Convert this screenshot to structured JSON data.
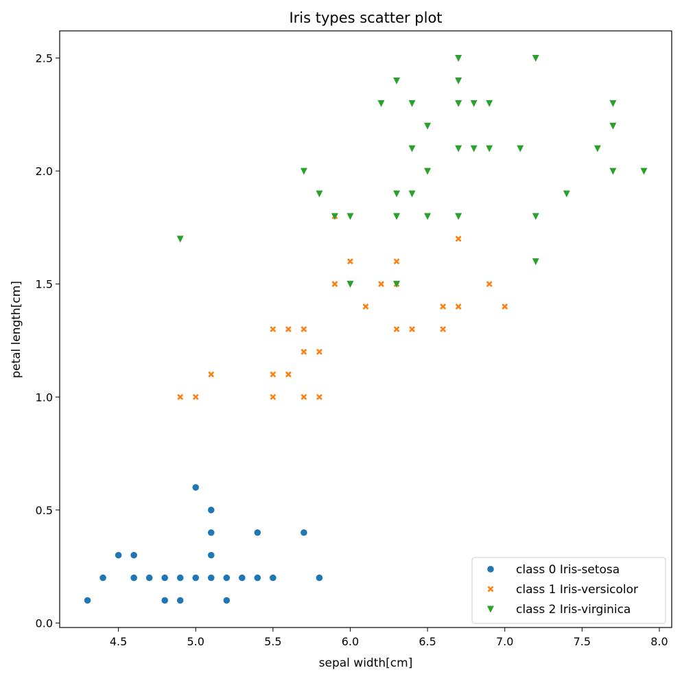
{
  "chart_data": {
    "type": "scatter",
    "title": "Iris types scatter plot",
    "xlabel": "sepal width[cm]",
    "ylabel": "petal length[cm]",
    "xlim": [
      4.12,
      8.08
    ],
    "ylim": [
      -0.02,
      2.62
    ],
    "xticks": [
      4.5,
      5.0,
      5.5,
      6.0,
      6.5,
      7.0,
      7.5,
      8.0
    ],
    "xtick_labels": [
      "4.5",
      "5.0",
      "5.5",
      "6.0",
      "6.5",
      "7.0",
      "7.5",
      "8.0"
    ],
    "yticks": [
      0.0,
      0.5,
      1.0,
      1.5,
      2.0,
      2.5
    ],
    "ytick_labels": [
      "0.0",
      "0.5",
      "1.0",
      "1.5",
      "2.0",
      "2.5"
    ],
    "grid": false,
    "legend_position": "bottom-right",
    "series": [
      {
        "name": "class 0 Iris-setosa",
        "marker": "circle",
        "color": "#1f77b4",
        "points": [
          [
            4.3,
            0.1
          ],
          [
            4.4,
            0.2
          ],
          [
            4.5,
            0.3
          ],
          [
            4.6,
            0.2
          ],
          [
            4.6,
            0.3
          ],
          [
            4.7,
            0.2
          ],
          [
            4.8,
            0.1
          ],
          [
            4.8,
            0.2
          ],
          [
            4.9,
            0.1
          ],
          [
            4.9,
            0.2
          ],
          [
            5.0,
            0.2
          ],
          [
            5.0,
            0.6
          ],
          [
            5.1,
            0.2
          ],
          [
            5.1,
            0.3
          ],
          [
            5.1,
            0.4
          ],
          [
            5.1,
            0.5
          ],
          [
            5.2,
            0.1
          ],
          [
            5.2,
            0.2
          ],
          [
            5.3,
            0.2
          ],
          [
            5.4,
            0.2
          ],
          [
            5.4,
            0.4
          ],
          [
            5.5,
            0.2
          ],
          [
            5.7,
            0.4
          ],
          [
            5.8,
            0.2
          ]
        ]
      },
      {
        "name": "class 1 Iris-versicolor",
        "marker": "x",
        "color": "#ff7f0e",
        "points": [
          [
            4.9,
            1.0
          ],
          [
            5.0,
            1.0
          ],
          [
            5.1,
            1.1
          ],
          [
            5.5,
            1.0
          ],
          [
            5.5,
            1.1
          ],
          [
            5.5,
            1.3
          ],
          [
            5.6,
            1.1
          ],
          [
            5.6,
            1.3
          ],
          [
            5.7,
            1.0
          ],
          [
            5.7,
            1.2
          ],
          [
            5.7,
            1.3
          ],
          [
            5.8,
            1.0
          ],
          [
            5.8,
            1.2
          ],
          [
            5.9,
            1.5
          ],
          [
            5.9,
            1.8
          ],
          [
            6.0,
            1.6
          ],
          [
            6.1,
            1.4
          ],
          [
            6.2,
            1.5
          ],
          [
            6.3,
            1.3
          ],
          [
            6.3,
            1.5
          ],
          [
            6.3,
            1.6
          ],
          [
            6.4,
            1.3
          ],
          [
            6.6,
            1.3
          ],
          [
            6.6,
            1.4
          ],
          [
            6.7,
            1.4
          ],
          [
            6.7,
            1.7
          ],
          [
            6.9,
            1.5
          ],
          [
            7.0,
            1.4
          ]
        ]
      },
      {
        "name": "class 2 Iris-virginica",
        "marker": "triangle-down",
        "color": "#2ca02c",
        "points": [
          [
            4.9,
            1.7
          ],
          [
            5.7,
            2.0
          ],
          [
            5.8,
            1.9
          ],
          [
            5.9,
            1.8
          ],
          [
            6.0,
            1.8
          ],
          [
            6.0,
            1.5
          ],
          [
            6.2,
            2.3
          ],
          [
            6.3,
            2.4
          ],
          [
            6.3,
            1.9
          ],
          [
            6.3,
            1.8
          ],
          [
            6.3,
            1.5
          ],
          [
            6.4,
            2.3
          ],
          [
            6.4,
            2.1
          ],
          [
            6.4,
            1.9
          ],
          [
            6.5,
            2.2
          ],
          [
            6.5,
            2.0
          ],
          [
            6.5,
            1.8
          ],
          [
            6.7,
            2.5
          ],
          [
            6.7,
            2.4
          ],
          [
            6.7,
            2.3
          ],
          [
            6.7,
            2.1
          ],
          [
            6.7,
            1.8
          ],
          [
            6.8,
            2.3
          ],
          [
            6.8,
            2.1
          ],
          [
            6.9,
            2.3
          ],
          [
            6.9,
            2.1
          ],
          [
            7.1,
            2.1
          ],
          [
            7.2,
            2.5
          ],
          [
            7.2,
            1.8
          ],
          [
            7.2,
            1.6
          ],
          [
            7.4,
            1.9
          ],
          [
            7.6,
            2.1
          ],
          [
            7.7,
            2.3
          ],
          [
            7.7,
            2.2
          ],
          [
            7.7,
            2.0
          ],
          [
            7.9,
            2.0
          ]
        ]
      }
    ]
  }
}
